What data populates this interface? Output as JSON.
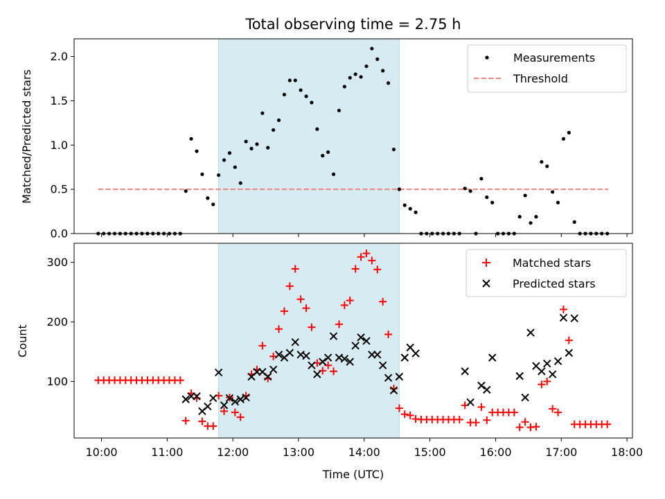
{
  "chart_data": [
    {
      "panel": "top",
      "type": "scatter",
      "title": "Total observing time = 2.75 h",
      "ylabel": "Matched/Predicted stars",
      "xlim": [
        "09:35",
        "18:05"
      ],
      "ylim": [
        0.0,
        2.2
      ],
      "yticks": [
        "0.0",
        "0.5",
        "1.0",
        "1.5",
        "2.0"
      ],
      "shaded_interval": [
        "11:47",
        "14:32"
      ],
      "shade_color": "#add8e6",
      "legend_position": "upper right",
      "legend": [
        {
          "label": "Measurements",
          "marker": "dot",
          "color": "#000000"
        },
        {
          "label": "Threshold",
          "marker": "dashed-line",
          "color": "#f08080"
        }
      ],
      "threshold": {
        "name": "Threshold",
        "value": 0.5,
        "x_range": [
          "09:57",
          "17:43"
        ],
        "color": "#f08080"
      },
      "series": [
        {
          "name": "Measurements",
          "color": "#000000",
          "points": [
            [
              "09:57",
              0
            ],
            [
              "10:02",
              0
            ],
            [
              "10:07",
              0
            ],
            [
              "10:12",
              0
            ],
            [
              "10:17",
              0
            ],
            [
              "10:22",
              0
            ],
            [
              "10:27",
              0
            ],
            [
              "10:32",
              0
            ],
            [
              "10:37",
              0
            ],
            [
              "10:42",
              0
            ],
            [
              "10:47",
              0
            ],
            [
              "10:52",
              0
            ],
            [
              "10:57",
              0
            ],
            [
              "11:02",
              0
            ],
            [
              "11:07",
              0
            ],
            [
              "11:12",
              0
            ],
            [
              "11:17",
              0.48
            ],
            [
              "11:22",
              1.07
            ],
            [
              "11:27",
              0.93
            ],
            [
              "11:32",
              0.67
            ],
            [
              "11:37",
              0.4
            ],
            [
              "11:42",
              0.33
            ],
            [
              "11:47",
              0.66
            ],
            [
              "11:52",
              0.83
            ],
            [
              "11:57",
              0.91
            ],
            [
              "12:02",
              0.75
            ],
            [
              "12:07",
              0.57
            ],
            [
              "12:12",
              1.04
            ],
            [
              "12:17",
              0.96
            ],
            [
              "12:22",
              1.01
            ],
            [
              "12:27",
              1.36
            ],
            [
              "12:32",
              0.97
            ],
            [
              "12:37",
              1.17
            ],
            [
              "12:42",
              1.28
            ],
            [
              "12:47",
              1.57
            ],
            [
              "12:52",
              1.73
            ],
            [
              "12:57",
              1.73
            ],
            [
              "13:02",
              1.62
            ],
            [
              "13:07",
              1.55
            ],
            [
              "13:12",
              1.48
            ],
            [
              "13:17",
              1.18
            ],
            [
              "13:22",
              0.88
            ],
            [
              "13:27",
              0.92
            ],
            [
              "13:32",
              0.67
            ],
            [
              "13:37",
              1.39
            ],
            [
              "13:42",
              1.66
            ],
            [
              "13:47",
              1.76
            ],
            [
              "13:52",
              1.8
            ],
            [
              "13:57",
              1.77
            ],
            [
              "14:02",
              1.89
            ],
            [
              "14:07",
              2.09
            ],
            [
              "14:12",
              1.97
            ],
            [
              "14:17",
              1.84
            ],
            [
              "14:22",
              1.7
            ],
            [
              "14:27",
              0.95
            ],
            [
              "14:32",
              0.5
            ],
            [
              "14:37",
              0.32
            ],
            [
              "14:42",
              0.28
            ],
            [
              "14:47",
              0.24
            ],
            [
              "14:52",
              0
            ],
            [
              "14:57",
              0
            ],
            [
              "15:02",
              0
            ],
            [
              "15:07",
              0
            ],
            [
              "15:12",
              0
            ],
            [
              "15:17",
              0
            ],
            [
              "15:22",
              0
            ],
            [
              "15:27",
              0
            ],
            [
              "15:32",
              0.51
            ],
            [
              "15:37",
              0.48
            ],
            [
              "15:42",
              0
            ],
            [
              "15:47",
              0.62
            ],
            [
              "15:52",
              0.41
            ],
            [
              "15:57",
              0.35
            ],
            [
              "16:02",
              0
            ],
            [
              "16:07",
              0
            ],
            [
              "16:12",
              0
            ],
            [
              "16:17",
              0
            ],
            [
              "16:22",
              0.19
            ],
            [
              "16:27",
              0.43
            ],
            [
              "16:32",
              0.12
            ],
            [
              "16:37",
              0.19
            ],
            [
              "16:42",
              0.81
            ],
            [
              "16:47",
              0.76
            ],
            [
              "16:52",
              0.47
            ],
            [
              "16:57",
              0.35
            ],
            [
              "17:02",
              1.07
            ],
            [
              "17:07",
              1.14
            ],
            [
              "17:12",
              0.13
            ],
            [
              "17:17",
              0
            ],
            [
              "17:22",
              0
            ],
            [
              "17:27",
              0
            ],
            [
              "17:32",
              0
            ],
            [
              "17:37",
              0
            ],
            [
              "17:42",
              0
            ]
          ]
        }
      ]
    },
    {
      "panel": "bottom",
      "type": "scatter",
      "xlabel": "Time (UTC)",
      "ylabel": "Count",
      "xlim": [
        "09:35",
        "18:05"
      ],
      "ylim": [
        5,
        332
      ],
      "yticks": [
        "100",
        "200",
        "300"
      ],
      "xticks": [
        "10:00",
        "11:00",
        "12:00",
        "13:00",
        "14:00",
        "15:00",
        "16:00",
        "17:00",
        "18:00"
      ],
      "shaded_interval": [
        "11:47",
        "14:32"
      ],
      "shade_color": "#add8e6",
      "legend_position": "upper right",
      "legend": [
        {
          "label": "Matched stars",
          "marker": "plus",
          "color": "#ff0000"
        },
        {
          "label": "Predicted stars",
          "marker": "x",
          "color": "#000000"
        }
      ],
      "series": [
        {
          "name": "Matched stars",
          "marker": "plus",
          "color": "#ff0000",
          "points": [
            [
              "09:57",
              102
            ],
            [
              "10:02",
              102
            ],
            [
              "10:07",
              102
            ],
            [
              "10:12",
              102
            ],
            [
              "10:17",
              102
            ],
            [
              "10:22",
              102
            ],
            [
              "10:27",
              102
            ],
            [
              "10:32",
              102
            ],
            [
              "10:37",
              102
            ],
            [
              "10:42",
              102
            ],
            [
              "10:47",
              102
            ],
            [
              "10:52",
              102
            ],
            [
              "10:57",
              102
            ],
            [
              "11:02",
              102
            ],
            [
              "11:07",
              102
            ],
            [
              "11:12",
              102
            ],
            [
              "11:17",
              34
            ],
            [
              "11:22",
              80
            ],
            [
              "11:27",
              72
            ],
            [
              "11:32",
              33
            ],
            [
              "11:37",
              25
            ],
            [
              "11:42",
              25
            ],
            [
              "11:47",
              76
            ],
            [
              "11:52",
              50
            ],
            [
              "11:57",
              73
            ],
            [
              "12:02",
              48
            ],
            [
              "12:07",
              40
            ],
            [
              "12:12",
              76
            ],
            [
              "12:17",
              112
            ],
            [
              "12:22",
              120
            ],
            [
              "12:27",
              160
            ],
            [
              "12:32",
              105
            ],
            [
              "12:37",
              142
            ],
            [
              "12:42",
              188
            ],
            [
              "12:47",
              218
            ],
            [
              "12:52",
              260
            ],
            [
              "12:57",
              289
            ],
            [
              "13:02",
              238
            ],
            [
              "13:07",
              223
            ],
            [
              "13:12",
              191
            ],
            [
              "13:17",
              131
            ],
            [
              "13:22",
              118
            ],
            [
              "13:27",
              127
            ],
            [
              "13:32",
              117
            ],
            [
              "13:37",
              196
            ],
            [
              "13:42",
              228
            ],
            [
              "13:47",
              236
            ],
            [
              "13:52",
              289
            ],
            [
              "13:57",
              309
            ],
            [
              "14:02",
              315
            ],
            [
              "14:07",
              303
            ],
            [
              "14:12",
              288
            ],
            [
              "14:17",
              234
            ],
            [
              "14:22",
              179
            ],
            [
              "14:27",
              88
            ],
            [
              "14:32",
              55
            ],
            [
              "14:37",
              45
            ],
            [
              "14:42",
              43
            ],
            [
              "14:47",
              37
            ],
            [
              "14:52",
              36
            ],
            [
              "14:57",
              36
            ],
            [
              "15:02",
              36
            ],
            [
              "15:07",
              36
            ],
            [
              "15:12",
              36
            ],
            [
              "15:17",
              36
            ],
            [
              "15:22",
              36
            ],
            [
              "15:27",
              36
            ],
            [
              "15:32",
              60
            ],
            [
              "15:37",
              31
            ],
            [
              "15:42",
              31
            ],
            [
              "15:47",
              57
            ],
            [
              "15:52",
              35
            ],
            [
              "15:57",
              48
            ],
            [
              "16:02",
              48
            ],
            [
              "16:07",
              48
            ],
            [
              "16:12",
              48
            ],
            [
              "16:17",
              48
            ],
            [
              "16:22",
              23
            ],
            [
              "16:27",
              32
            ],
            [
              "16:32",
              23
            ],
            [
              "16:37",
              24
            ],
            [
              "16:42",
              95
            ],
            [
              "16:47",
              100
            ],
            [
              "16:52",
              54
            ],
            [
              "16:57",
              48
            ],
            [
              "17:02",
              221
            ],
            [
              "17:07",
              169
            ],
            [
              "17:12",
              28
            ],
            [
              "17:17",
              28
            ],
            [
              "17:22",
              28
            ],
            [
              "17:27",
              28
            ],
            [
              "17:32",
              28
            ],
            [
              "17:37",
              28
            ],
            [
              "17:42",
              28
            ]
          ]
        },
        {
          "name": "Predicted stars",
          "marker": "x",
          "color": "#000000",
          "points": [
            [
              "11:17",
              70
            ],
            [
              "11:22",
              75
            ],
            [
              "11:27",
              75
            ],
            [
              "11:32",
              50
            ],
            [
              "11:37",
              58
            ],
            [
              "11:42",
              72
            ],
            [
              "11:47",
              115
            ],
            [
              "11:52",
              60
            ],
            [
              "11:57",
              72
            ],
            [
              "12:02",
              66
            ],
            [
              "12:07",
              70
            ],
            [
              "12:12",
              73
            ],
            [
              "12:17",
              108
            ],
            [
              "12:22",
              116
            ],
            [
              "12:27",
              116
            ],
            [
              "12:32",
              108
            ],
            [
              "12:37",
              120
            ],
            [
              "12:42",
              145
            ],
            [
              "12:47",
              140
            ],
            [
              "12:52",
              148
            ],
            [
              "12:57",
              166
            ],
            [
              "13:02",
              145
            ],
            [
              "13:07",
              143
            ],
            [
              "13:12",
              127
            ],
            [
              "13:17",
              112
            ],
            [
              "13:22",
              133
            ],
            [
              "13:27",
              140
            ],
            [
              "13:32",
              176
            ],
            [
              "13:37",
              140
            ],
            [
              "13:42",
              138
            ],
            [
              "13:47",
              133
            ],
            [
              "13:52",
              160
            ],
            [
              "13:57",
              174
            ],
            [
              "14:02",
              168
            ],
            [
              "14:07",
              145
            ],
            [
              "14:12",
              145
            ],
            [
              "14:17",
              127
            ],
            [
              "14:22",
              106
            ],
            [
              "14:27",
              85
            ],
            [
              "14:32",
              108
            ],
            [
              "14:37",
              140
            ],
            [
              "14:42",
              157
            ],
            [
              "14:47",
              147
            ],
            [
              "15:32",
              117
            ],
            [
              "15:37",
              65
            ],
            [
              "15:47",
              93
            ],
            [
              "15:52",
              86
            ],
            [
              "15:57",
              140
            ],
            [
              "16:22",
              109
            ],
            [
              "16:27",
              73
            ],
            [
              "16:32",
              182
            ],
            [
              "16:37",
              126
            ],
            [
              "16:42",
              117
            ],
            [
              "16:47",
              130
            ],
            [
              "16:52",
              112
            ],
            [
              "16:57",
              134
            ],
            [
              "17:02",
              207
            ],
            [
              "17:07",
              148
            ],
            [
              "17:12",
              206
            ]
          ]
        }
      ]
    }
  ]
}
